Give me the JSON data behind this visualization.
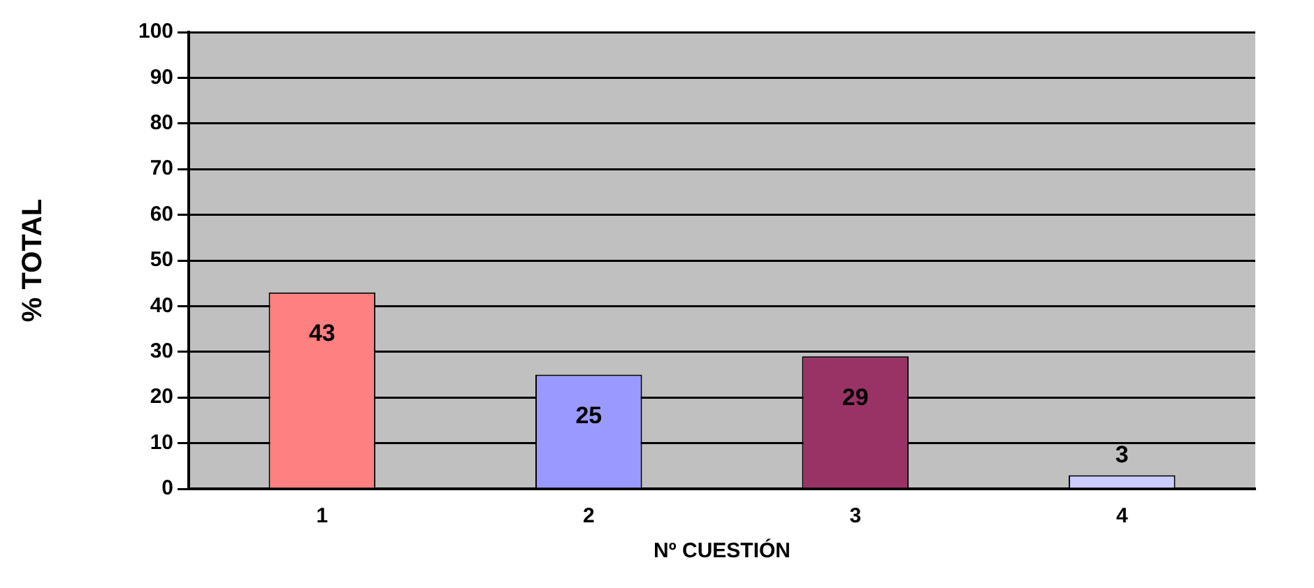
{
  "chart_data": {
    "type": "bar",
    "xlabel": "Nº CUESTIÓN",
    "ylabel": "% TOTAL",
    "categories": [
      "1",
      "2",
      "3",
      "4"
    ],
    "values": [
      43,
      25,
      29,
      3
    ],
    "colors": [
      "#ff8080",
      "#9999ff",
      "#993366",
      "#ccccff"
    ],
    "ylim": [
      0,
      100
    ],
    "yticks": [
      0,
      10,
      20,
      30,
      40,
      50,
      60,
      70,
      80,
      90,
      100
    ],
    "grid": "y",
    "legend": false,
    "data_labels": true
  }
}
